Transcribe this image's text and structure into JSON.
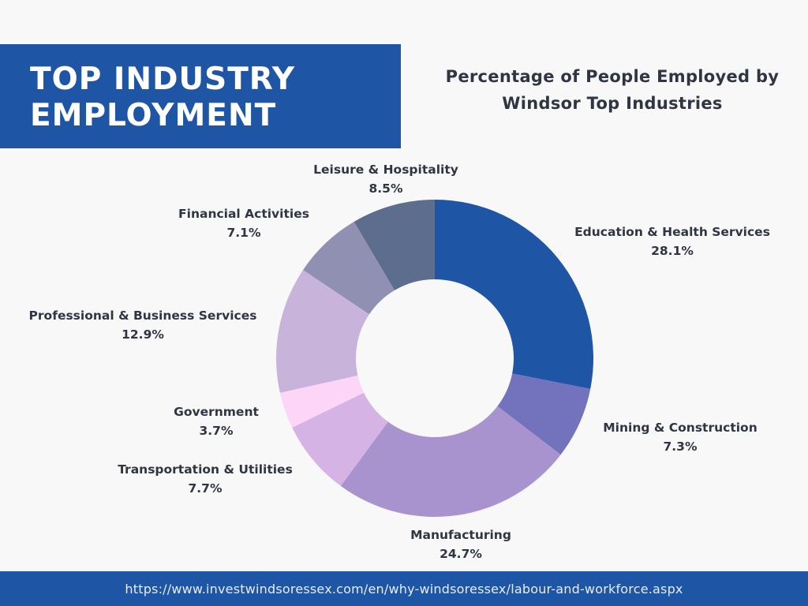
{
  "banner": {
    "title_line1": "TOP INDUSTRY",
    "title_line2": "EMPLOYMENT"
  },
  "footer": {
    "url": "https://www.investwindsoressex.com/en/why-windsoressex/labour-and-workforce.aspx"
  },
  "chart_data": {
    "type": "pie",
    "title": "Percentage of People Employed by Windsor Top Industries",
    "unit": "%",
    "legend": "none",
    "slices": [
      {
        "label": "Education & Health Services",
        "value": 28.1,
        "value_label": "28.1%",
        "color": "#1f55a5"
      },
      {
        "label": "Mining & Construction",
        "value": 7.3,
        "value_label": "7.3%",
        "color": "#7373bd"
      },
      {
        "label": "Manufacturing",
        "value": 24.7,
        "value_label": "24.7%",
        "color": "#a993ce"
      },
      {
        "label": "Transportation & Utilities",
        "value": 7.7,
        "value_label": "7.7%",
        "color": "#d5b3e4"
      },
      {
        "label": "Government",
        "value": 3.7,
        "value_label": "3.7%",
        "color": "#fcd5f7"
      },
      {
        "label": "Professional & Business Services",
        "value": 12.9,
        "value_label": "12.9%",
        "color": "#c8b4da"
      },
      {
        "label": "Financial Activities",
        "value": 7.1,
        "value_label": "7.1%",
        "color": "#9090b2"
      },
      {
        "label": "Leisure & Hospitality",
        "value": 8.5,
        "value_label": "8.5%",
        "color": "#5c6d8d"
      }
    ]
  }
}
